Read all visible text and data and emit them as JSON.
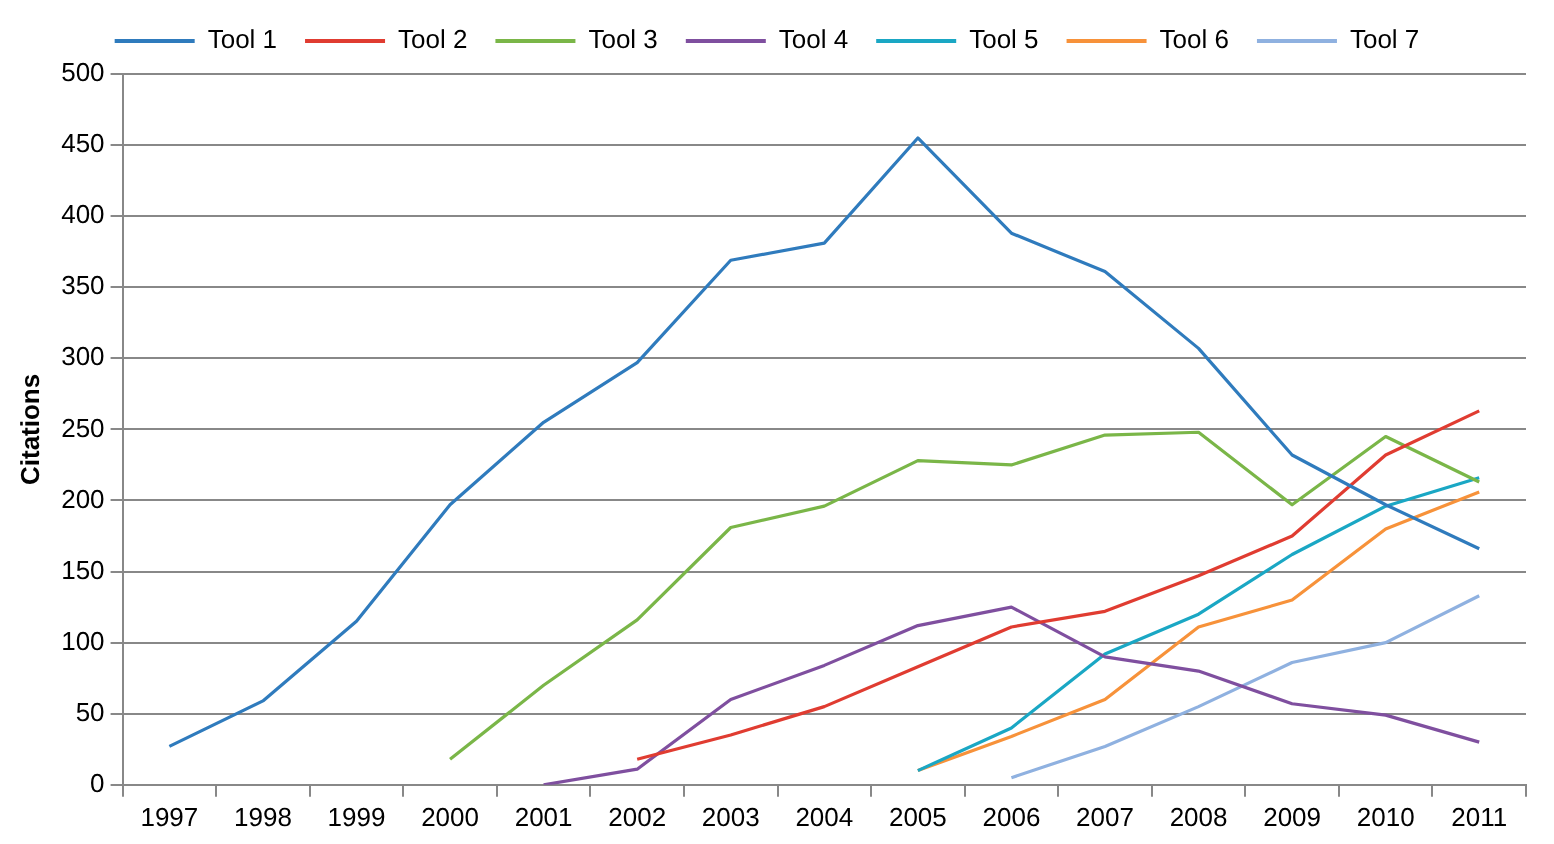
{
  "chart_data": {
    "type": "line",
    "ylabel": "Citations",
    "categories": [
      "1997",
      "1998",
      "1999",
      "2000",
      "2001",
      "2002",
      "2003",
      "2004",
      "2005",
      "2006",
      "2007",
      "2008",
      "2009",
      "2010",
      "2011"
    ],
    "series": [
      {
        "name": "Tool 1",
        "color": "#2f7bbd",
        "values": [
          27,
          59,
          115,
          197,
          255,
          297,
          369,
          381,
          455,
          388,
          361,
          307,
          232,
          197,
          166
        ]
      },
      {
        "name": "Tool 2",
        "color": "#e03c31",
        "values": [
          null,
          null,
          null,
          null,
          null,
          18,
          35,
          55,
          83,
          111,
          122,
          147,
          175,
          232,
          263
        ]
      },
      {
        "name": "Tool 3",
        "color": "#7ab648",
        "values": [
          null,
          null,
          null,
          18,
          70,
          116,
          181,
          196,
          228,
          225,
          246,
          248,
          197,
          245,
          213
        ]
      },
      {
        "name": "Tool 4",
        "color": "#7f4f9f",
        "values": [
          null,
          null,
          null,
          null,
          0,
          11,
          60,
          84,
          112,
          125,
          90,
          80,
          57,
          49,
          30
        ]
      },
      {
        "name": "Tool 5",
        "color": "#1aa7c4",
        "values": [
          null,
          null,
          null,
          null,
          null,
          null,
          null,
          null,
          10,
          40,
          92,
          120,
          162,
          196,
          216
        ]
      },
      {
        "name": "Tool 6",
        "color": "#f7923a",
        "values": [
          null,
          null,
          null,
          null,
          null,
          null,
          null,
          null,
          10,
          34,
          60,
          111,
          130,
          180,
          206
        ]
      },
      {
        "name": "Tool 7",
        "color": "#8fb1e0",
        "values": [
          null,
          null,
          null,
          null,
          null,
          null,
          null,
          null,
          null,
          5,
          27,
          55,
          86,
          100,
          133
        ]
      }
    ],
    "ylim": [
      0,
      500
    ],
    "yticks": [
      0,
      50,
      100,
      150,
      200,
      250,
      300,
      350,
      400,
      450,
      500
    ],
    "grid": "y",
    "legend": "top",
    "marker": "none",
    "line_style": "solid"
  }
}
